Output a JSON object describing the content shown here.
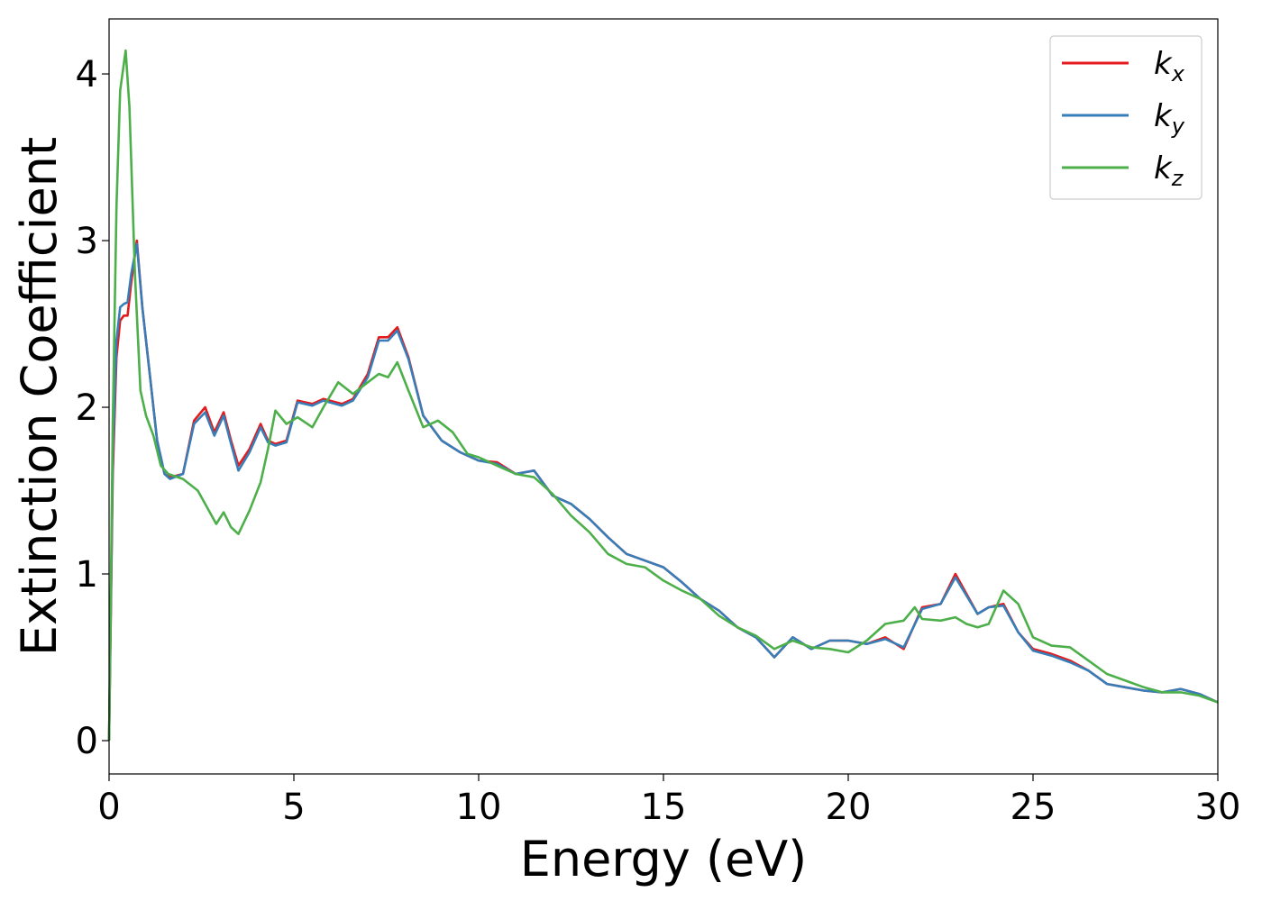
{
  "chart_data": {
    "type": "line",
    "title": "",
    "xlabel": "Energy (eV)",
    "ylabel": "Extinction Coefficient",
    "xlim": [
      0,
      30
    ],
    "ylim": [
      -0.2,
      4.33
    ],
    "xticks": [
      0,
      5,
      10,
      15,
      20,
      25,
      30
    ],
    "yticks": [
      0,
      1,
      2,
      3,
      4
    ],
    "grid": false,
    "legend_position": "top-right",
    "series": [
      {
        "name": "kx",
        "label_base": "k",
        "label_sub": "x",
        "color": "#e41a1c",
        "x": [
          0,
          0.1,
          0.2,
          0.3,
          0.4,
          0.5,
          0.6,
          0.75,
          0.9,
          1.1,
          1.3,
          1.5,
          1.65,
          2.0,
          2.3,
          2.6,
          2.85,
          3.1,
          3.3,
          3.5,
          3.8,
          4.1,
          4.3,
          4.5,
          4.8,
          5.1,
          5.5,
          5.8,
          6.3,
          6.6,
          7.0,
          7.3,
          7.55,
          7.8,
          8.1,
          8.5,
          9.0,
          9.5,
          10.0,
          10.5,
          11.0,
          11.5,
          12.0,
          12.5,
          13.0,
          13.5,
          14.0,
          14.5,
          15.0,
          15.5,
          16.0,
          16.5,
          17.0,
          17.5,
          18.0,
          18.5,
          19.0,
          19.5,
          20.0,
          20.5,
          21.0,
          21.5,
          22.0,
          22.5,
          22.9,
          23.2,
          23.5,
          23.8,
          24.2,
          24.6,
          25.0,
          25.5,
          26.0,
          26.5,
          27.0,
          27.5,
          28.0,
          28.5,
          29.0,
          29.5,
          30.0
        ],
        "y": [
          0,
          1.6,
          2.3,
          2.52,
          2.55,
          2.55,
          2.75,
          3.0,
          2.6,
          2.2,
          1.8,
          1.6,
          1.58,
          1.6,
          1.92,
          2.0,
          1.85,
          1.97,
          1.8,
          1.65,
          1.75,
          1.9,
          1.8,
          1.78,
          1.8,
          2.04,
          2.02,
          2.05,
          2.02,
          2.05,
          2.2,
          2.42,
          2.42,
          2.48,
          2.3,
          1.95,
          1.8,
          1.73,
          1.68,
          1.67,
          1.6,
          1.62,
          1.47,
          1.42,
          1.33,
          1.22,
          1.12,
          1.08,
          1.04,
          0.95,
          0.85,
          0.78,
          0.68,
          0.62,
          0.5,
          0.62,
          0.55,
          0.6,
          0.6,
          0.58,
          0.62,
          0.55,
          0.8,
          0.82,
          1.0,
          0.88,
          0.76,
          0.8,
          0.82,
          0.65,
          0.55,
          0.52,
          0.48,
          0.42,
          0.34,
          0.32,
          0.3,
          0.29,
          0.31,
          0.28,
          0.23
        ]
      },
      {
        "name": "ky",
        "label_base": "k",
        "label_sub": "y",
        "color": "#377eb8",
        "x": [
          0,
          0.1,
          0.2,
          0.3,
          0.4,
          0.5,
          0.6,
          0.75,
          0.9,
          1.1,
          1.3,
          1.5,
          1.65,
          2.0,
          2.3,
          2.6,
          2.85,
          3.1,
          3.3,
          3.5,
          3.8,
          4.1,
          4.3,
          4.5,
          4.8,
          5.1,
          5.5,
          5.8,
          6.3,
          6.6,
          7.0,
          7.3,
          7.55,
          7.8,
          8.1,
          8.5,
          9.0,
          9.5,
          10.0,
          10.5,
          11.0,
          11.5,
          12.0,
          12.5,
          13.0,
          13.5,
          14.0,
          14.5,
          15.0,
          15.5,
          16.0,
          16.5,
          17.0,
          17.5,
          18.0,
          18.5,
          19.0,
          19.5,
          20.0,
          20.5,
          21.0,
          21.5,
          22.0,
          22.5,
          22.9,
          23.2,
          23.5,
          23.8,
          24.2,
          24.6,
          25.0,
          25.5,
          26.0,
          26.5,
          27.0,
          27.5,
          28.0,
          28.5,
          29.0,
          29.5,
          30.0
        ],
        "y": [
          0,
          1.7,
          2.4,
          2.6,
          2.62,
          2.63,
          2.8,
          2.98,
          2.6,
          2.2,
          1.8,
          1.6,
          1.57,
          1.6,
          1.9,
          1.97,
          1.83,
          1.95,
          1.78,
          1.62,
          1.73,
          1.88,
          1.79,
          1.77,
          1.79,
          2.03,
          2.01,
          2.04,
          2.01,
          2.04,
          2.18,
          2.4,
          2.4,
          2.46,
          2.29,
          1.95,
          1.8,
          1.73,
          1.68,
          1.66,
          1.6,
          1.62,
          1.47,
          1.42,
          1.33,
          1.22,
          1.12,
          1.08,
          1.04,
          0.95,
          0.85,
          0.78,
          0.68,
          0.62,
          0.5,
          0.62,
          0.55,
          0.6,
          0.6,
          0.58,
          0.61,
          0.56,
          0.79,
          0.82,
          0.98,
          0.87,
          0.76,
          0.8,
          0.81,
          0.65,
          0.54,
          0.51,
          0.47,
          0.42,
          0.34,
          0.32,
          0.3,
          0.29,
          0.31,
          0.28,
          0.23
        ]
      },
      {
        "name": "kz",
        "label_base": "k",
        "label_sub": "z",
        "color": "#4daf4a",
        "x": [
          0,
          0.1,
          0.2,
          0.3,
          0.45,
          0.55,
          0.7,
          0.85,
          1.0,
          1.2,
          1.4,
          1.6,
          2.0,
          2.4,
          2.6,
          2.9,
          3.1,
          3.3,
          3.5,
          3.8,
          4.1,
          4.3,
          4.5,
          4.8,
          5.1,
          5.5,
          5.8,
          6.2,
          6.6,
          7.0,
          7.3,
          7.55,
          7.8,
          8.1,
          8.5,
          8.9,
          9.3,
          9.7,
          10.0,
          10.5,
          11.0,
          11.5,
          12.0,
          12.5,
          13.0,
          13.5,
          14.0,
          14.5,
          15.0,
          15.5,
          16.0,
          16.5,
          17.0,
          17.5,
          18.0,
          18.5,
          19.0,
          19.5,
          20.0,
          20.5,
          21.0,
          21.5,
          21.8,
          22.0,
          22.5,
          22.9,
          23.2,
          23.5,
          23.8,
          24.2,
          24.6,
          25.0,
          25.5,
          26.0,
          26.5,
          27.0,
          27.5,
          28.0,
          28.5,
          29.0,
          29.5,
          30.0
        ],
        "y": [
          0,
          1.9,
          3.2,
          3.9,
          4.14,
          3.8,
          2.8,
          2.1,
          1.95,
          1.83,
          1.65,
          1.6,
          1.57,
          1.5,
          1.42,
          1.3,
          1.37,
          1.28,
          1.24,
          1.38,
          1.55,
          1.75,
          1.98,
          1.9,
          1.94,
          1.88,
          2.0,
          2.15,
          2.08,
          2.15,
          2.2,
          2.18,
          2.27,
          2.1,
          1.88,
          1.92,
          1.85,
          1.72,
          1.7,
          1.65,
          1.6,
          1.58,
          1.48,
          1.35,
          1.25,
          1.12,
          1.06,
          1.04,
          0.96,
          0.9,
          0.85,
          0.75,
          0.68,
          0.63,
          0.55,
          0.6,
          0.56,
          0.55,
          0.53,
          0.6,
          0.7,
          0.72,
          0.8,
          0.73,
          0.72,
          0.74,
          0.7,
          0.68,
          0.7,
          0.9,
          0.82,
          0.62,
          0.57,
          0.56,
          0.48,
          0.4,
          0.36,
          0.32,
          0.29,
          0.29,
          0.27,
          0.23
        ]
      }
    ]
  }
}
